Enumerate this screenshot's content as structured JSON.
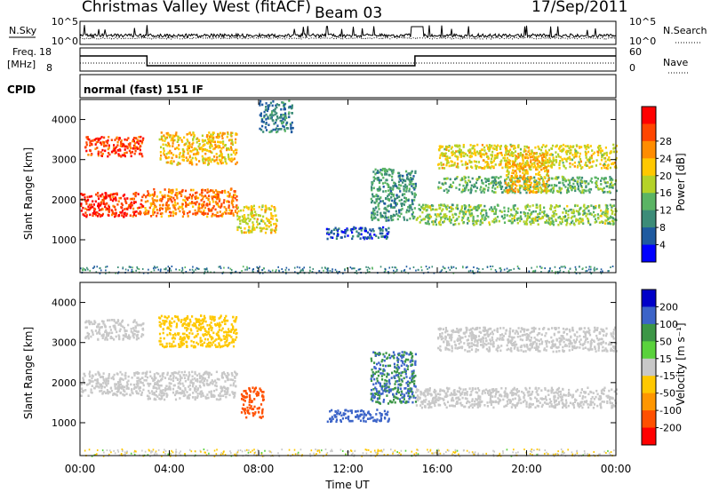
{
  "header": {
    "station": "Christmas Valley West (fitACF)",
    "beam": "Beam 03",
    "date": "17/Sep/2011"
  },
  "panels": {
    "nsky_label": "N.Sky",
    "nsky_ticks": [
      "10^5",
      "10^0"
    ],
    "nsearch_label": "N.Search",
    "nsearch_ticks": [
      "10^5",
      "10^0"
    ],
    "freq_label": "Freq.",
    "freq_unit": "[MHz]",
    "freq_ticks": [
      "18",
      "8"
    ],
    "nave_label": "Nave",
    "nave_ticks": [
      "60",
      "0"
    ],
    "cpid_label": "CPID",
    "cpid_value": "normal (fast) 151 IF"
  },
  "chart_data": [
    {
      "type": "heatmap",
      "name": "power",
      "ylabel": "Slant Range [km]",
      "yticks": [
        "1000",
        "2000",
        "3000",
        "4000"
      ],
      "ylim": [
        180,
        4500
      ],
      "xlim": [
        0,
        24
      ],
      "xticks": [
        "00:00",
        "04:00",
        "08:00",
        "12:00",
        "16:00",
        "20:00",
        "00:00"
      ],
      "colorbar": {
        "label": "Power [dB]",
        "ticks": [
          "4",
          "8",
          "12",
          "16",
          "20",
          "24",
          "28"
        ],
        "colors": [
          "#0000ff",
          "#1e5aa0",
          "#3c8c78",
          "#5ab464",
          "#b4d228",
          "#ffc800",
          "#ff8c00",
          "#ff4600",
          "#ff0000"
        ]
      },
      "regions": [
        {
          "t": [
            0.0,
            2.8
          ],
          "r": [
            1600,
            2200
          ],
          "v": 28
        },
        {
          "t": [
            0.2,
            2.8
          ],
          "r": [
            3100,
            3600
          ],
          "v": 27
        },
        {
          "t": [
            2.8,
            7.0
          ],
          "r": [
            1600,
            2300
          ],
          "v": 24
        },
        {
          "t": [
            3.5,
            7.0
          ],
          "r": [
            2900,
            3700
          ],
          "v": 20
        },
        {
          "t": [
            7.0,
            8.8
          ],
          "r": [
            1200,
            1900
          ],
          "v": 18
        },
        {
          "t": [
            8.0,
            9.5
          ],
          "r": [
            3700,
            4500
          ],
          "v": 8
        },
        {
          "t": [
            11.0,
            13.8
          ],
          "r": [
            1050,
            1350
          ],
          "v": 6
        },
        {
          "t": [
            13.0,
            15.0
          ],
          "r": [
            1500,
            2800
          ],
          "v": 10
        },
        {
          "t": [
            15.0,
            24.0
          ],
          "r": [
            1400,
            1900
          ],
          "v": 14
        },
        {
          "t": [
            16.0,
            24.0
          ],
          "r": [
            2200,
            2600
          ],
          "v": 12
        },
        {
          "t": [
            16.0,
            24.0
          ],
          "r": [
            2800,
            3400
          ],
          "v": 18
        },
        {
          "t": [
            19.0,
            21.0
          ],
          "r": [
            2200,
            3200
          ],
          "v": 20
        }
      ]
    },
    {
      "type": "heatmap",
      "name": "velocity",
      "ylabel": "Slant Range [km]",
      "yticks": [
        "1000",
        "2000",
        "3000",
        "4000"
      ],
      "ylim": [
        180,
        4500
      ],
      "xlim": [
        0,
        24
      ],
      "xticks": [
        "00:00",
        "04:00",
        "08:00",
        "12:00",
        "16:00",
        "20:00",
        "00:00"
      ],
      "xlabel": "Time UT",
      "colorbar": {
        "label": "Velocity [m s⁻¹]",
        "ticks": [
          "200",
          "100",
          "50",
          "15",
          "-15",
          "-50",
          "-100",
          "-200"
        ],
        "colors": [
          "#0000c8",
          "#3c64c8",
          "#3c9646",
          "#5ad23c",
          "#c8c8c8",
          "#ffc800",
          "#ff9600",
          "#ff5000",
          "#ff0000"
        ]
      },
      "regions": [
        {
          "t": [
            0.0,
            2.8
          ],
          "r": [
            1700,
            2300
          ],
          "v": 0
        },
        {
          "t": [
            0.2,
            2.8
          ],
          "r": [
            3100,
            3600
          ],
          "v": 0
        },
        {
          "t": [
            2.8,
            7.0
          ],
          "r": [
            1600,
            2300
          ],
          "v": 0
        },
        {
          "t": [
            3.5,
            7.0
          ],
          "r": [
            2900,
            3700
          ],
          "v": -30
        },
        {
          "t": [
            7.2,
            8.2
          ],
          "r": [
            1150,
            1900
          ],
          "v": -180
        },
        {
          "t": [
            11.0,
            13.8
          ],
          "r": [
            1050,
            1350
          ],
          "v": 150
        },
        {
          "t": [
            13.0,
            15.0
          ],
          "r": [
            1500,
            2800
          ],
          "v": 100
        },
        {
          "t": [
            15.0,
            24.0
          ],
          "r": [
            1400,
            1900
          ],
          "v": 0
        },
        {
          "t": [
            16.0,
            24.0
          ],
          "r": [
            2800,
            3400
          ],
          "v": 0
        }
      ]
    }
  ]
}
